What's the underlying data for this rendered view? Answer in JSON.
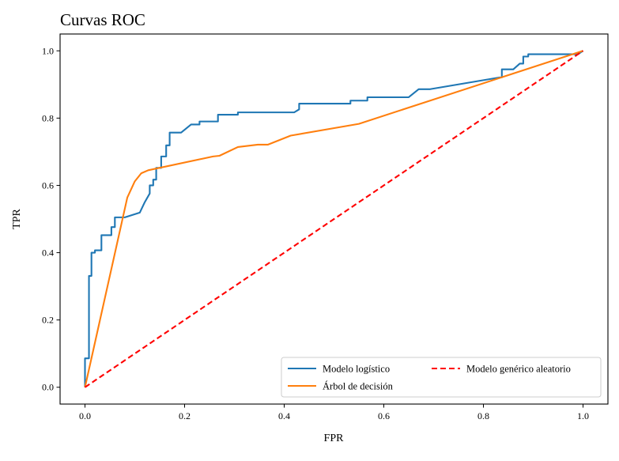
{
  "chart_data": {
    "type": "line",
    "title": "Curvas ROC",
    "xlabel": "FPR",
    "ylabel": "TPR",
    "xlim": [
      -0.05,
      1.05
    ],
    "ylim": [
      -0.05,
      1.05
    ],
    "xticks": [
      "0.0",
      "0.2",
      "0.4",
      "0.6",
      "0.8",
      "1.0"
    ],
    "yticks": [
      "0.0",
      "0.2",
      "0.4",
      "0.6",
      "0.8",
      "1.0"
    ],
    "grid": false,
    "legend_position": "lower-right",
    "series": [
      {
        "name": "Modelo logístico",
        "color": "#1f77b4",
        "style": "solid",
        "x": [
          0.0,
          0.0,
          0.008,
          0.008,
          0.013,
          0.013,
          0.02,
          0.02,
          0.033,
          0.033,
          0.053,
          0.053,
          0.06,
          0.06,
          0.08,
          0.11,
          0.12,
          0.13,
          0.13,
          0.137,
          0.137,
          0.143,
          0.143,
          0.153,
          0.153,
          0.163,
          0.163,
          0.17,
          0.17,
          0.193,
          0.213,
          0.23,
          0.23,
          0.267,
          0.267,
          0.307,
          0.307,
          0.42,
          0.43,
          0.43,
          0.53,
          0.533,
          0.533,
          0.567,
          0.567,
          0.65,
          0.67,
          0.67,
          0.693,
          0.833,
          0.837,
          0.837,
          0.86,
          0.873,
          0.88,
          0.88,
          0.89,
          0.89,
          0.99,
          1.0
        ],
        "y": [
          0.0,
          0.086,
          0.086,
          0.331,
          0.331,
          0.4,
          0.4,
          0.407,
          0.407,
          0.452,
          0.452,
          0.476,
          0.476,
          0.505,
          0.505,
          0.519,
          0.55,
          0.576,
          0.6,
          0.6,
          0.617,
          0.617,
          0.652,
          0.652,
          0.686,
          0.686,
          0.719,
          0.719,
          0.757,
          0.757,
          0.781,
          0.781,
          0.79,
          0.79,
          0.81,
          0.81,
          0.817,
          0.817,
          0.826,
          0.843,
          0.843,
          0.843,
          0.852,
          0.852,
          0.862,
          0.862,
          0.886,
          0.886,
          0.886,
          0.921,
          0.921,
          0.945,
          0.945,
          0.962,
          0.962,
          0.983,
          0.983,
          0.99,
          0.99,
          1.0
        ]
      },
      {
        "name": "Árbol de decisión",
        "color": "#ff7f0e",
        "style": "solid",
        "x": [
          0.0,
          0.085,
          0.1,
          0.113,
          0.127,
          0.257,
          0.27,
          0.307,
          0.347,
          0.367,
          0.413,
          0.55,
          1.0
        ],
        "y": [
          0.0,
          0.564,
          0.612,
          0.636,
          0.645,
          0.686,
          0.688,
          0.714,
          0.721,
          0.721,
          0.748,
          0.783,
          1.0
        ]
      },
      {
        "name": "Modelo genérico aleatorio",
        "color": "#ff0000",
        "style": "dashed",
        "x": [
          0.0,
          1.0
        ],
        "y": [
          0.0,
          1.0
        ]
      }
    ]
  }
}
